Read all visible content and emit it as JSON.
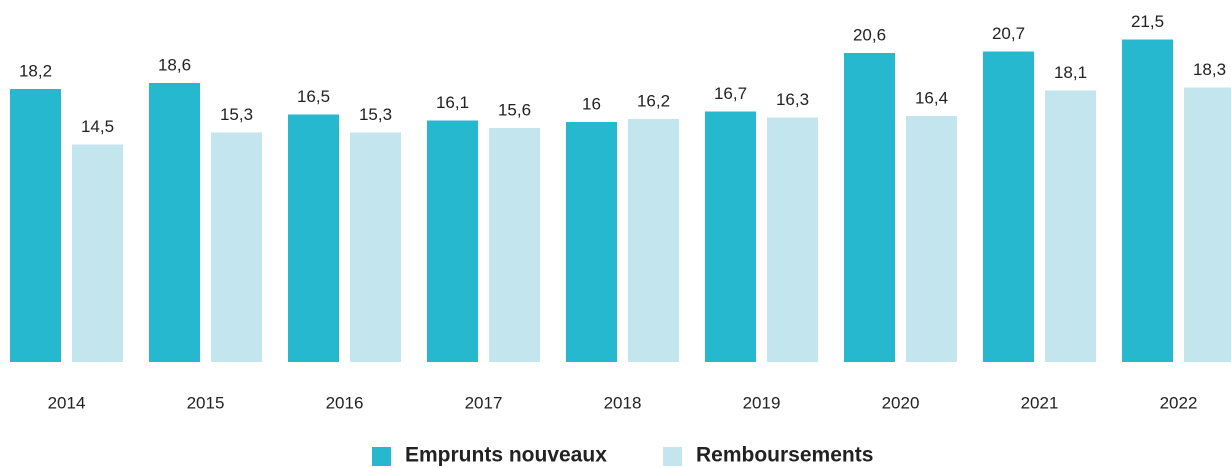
{
  "chart_data": {
    "type": "bar",
    "categories": [
      "2014",
      "2015",
      "2016",
      "2017",
      "2018",
      "2019",
      "2020",
      "2021",
      "2022"
    ],
    "series": [
      {
        "name": "Emprunts nouveaux",
        "color": "#26b8cf",
        "values": [
          18.2,
          18.6,
          16.5,
          16.1,
          16,
          16.7,
          20.6,
          20.7,
          21.5
        ],
        "value_labels": [
          "18,2",
          "18,6",
          "16,5",
          "16,1",
          "16",
          "16,7",
          "20,6",
          "20,7",
          "21,5"
        ]
      },
      {
        "name": "Remboursements",
        "color": "#c3e5ed",
        "values": [
          14.5,
          15.3,
          15.3,
          15.6,
          16.2,
          16.3,
          16.4,
          18.1,
          18.3
        ],
        "value_labels": [
          "14,5",
          "15,3",
          "15,3",
          "15,6",
          "16,2",
          "16,3",
          "16,4",
          "18,1",
          "18,3"
        ]
      }
    ]
  }
}
